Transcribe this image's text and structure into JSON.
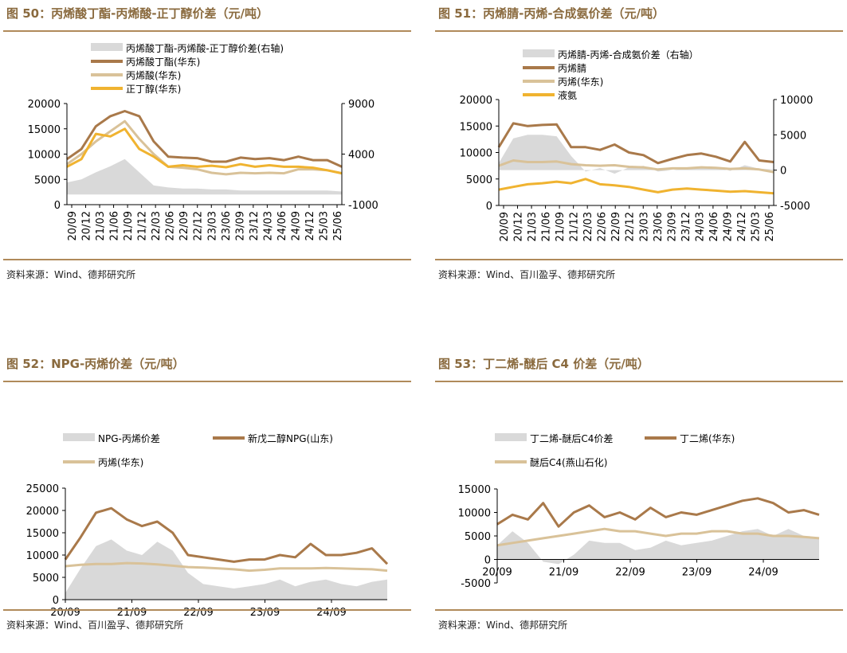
{
  "source_label_prefix": "资料来源：",
  "chart_data": [
    {
      "id": "c50",
      "type": "line",
      "title": "图 50：丙烯酸丁酯-丙烯酸-正丁醇价差（元/吨）",
      "source": "资料来源：Wind、德邦研究所",
      "x_tick_labels": [
        "20/09",
        "20/12",
        "21/03",
        "21/06",
        "21/09",
        "21/12",
        "22/03",
        "22/06",
        "22/09",
        "22/12",
        "23/03",
        "23/06",
        "23/09",
        "23/12",
        "24/03",
        "24/06",
        "24/09",
        "24/12",
        "25/03",
        "25/06"
      ],
      "y_left": {
        "min": 0,
        "max": 20000,
        "ticks": [
          "0",
          "5000",
          "10000",
          "15000",
          "20000"
        ]
      },
      "y_right": {
        "min": -1000,
        "max": 9000,
        "ticks": [
          "-1000",
          "4000",
          "9000"
        ]
      },
      "series": [
        {
          "name": "丙烯酸丁酯-丙烯酸-正丁醇价差(右轴)",
          "kind": "area",
          "axis": "right",
          "color": "#d9d9d9",
          "values": [
            1200,
            1500,
            2200,
            2800,
            3500,
            2200,
            900,
            700,
            600,
            600,
            500,
            500,
            400,
            400,
            400,
            400,
            400,
            400,
            400,
            300
          ]
        },
        {
          "name": "丙烯酸丁酯(华东)",
          "kind": "line",
          "axis": "left",
          "color": "#a9794a",
          "values": [
            9000,
            11000,
            15500,
            17500,
            18500,
            17500,
            12500,
            9500,
            9300,
            9200,
            8500,
            8500,
            9300,
            9000,
            9200,
            8800,
            9500,
            8800,
            8800,
            7500
          ]
        },
        {
          "name": "丙烯酸(华东)",
          "kind": "line",
          "axis": "left",
          "color": "#d9c299",
          "values": [
            8000,
            10000,
            12500,
            14500,
            16500,
            13000,
            10000,
            7500,
            7300,
            7000,
            6300,
            6000,
            6300,
            6200,
            6300,
            6200,
            7000,
            7000,
            6800,
            6200
          ]
        },
        {
          "name": "正丁醇(华东)",
          "kind": "line",
          "axis": "left",
          "color": "#f0b330",
          "values": [
            7500,
            9000,
            14000,
            13500,
            15000,
            11000,
            9500,
            7500,
            7800,
            7500,
            7700,
            7400,
            8000,
            7500,
            7800,
            7500,
            7500,
            7300,
            6800,
            6200
          ]
        }
      ]
    },
    {
      "id": "c51",
      "type": "line",
      "title": "图 51：丙烯腈-丙烯-合成氨价差（元/吨）",
      "source": "资料来源：Wind、百川盈孚、德邦研究所",
      "x_tick_labels": [
        "20/09",
        "20/12",
        "21/03",
        "21/06",
        "21/09",
        "21/12",
        "22/03",
        "22/06",
        "22/09",
        "22/12",
        "23/03",
        "23/06",
        "23/09",
        "23/12",
        "24/03",
        "24/06",
        "24/09",
        "24/12",
        "25/03",
        "25/06"
      ],
      "y_left": {
        "min": 0,
        "max": 20000,
        "ticks": [
          "0",
          "5000",
          "10000",
          "15000",
          "20000"
        ]
      },
      "y_right": {
        "min": -5000,
        "max": 10000,
        "ticks": [
          "-5000",
          "0",
          "5000",
          "10000"
        ]
      },
      "series": [
        {
          "name": "丙烯腈-丙烯-合成氨价差（右轴）",
          "kind": "area",
          "axis": "right",
          "color": "#d9d9d9",
          "values": [
            1000,
            4500,
            5000,
            5000,
            4800,
            2000,
            -200,
            300,
            -500,
            400,
            600,
            -200,
            0,
            300,
            300,
            400,
            -100,
            700,
            200,
            100
          ]
        },
        {
          "name": "丙烯腈",
          "kind": "line",
          "axis": "left",
          "color": "#a9794a",
          "values": [
            11000,
            15500,
            15000,
            15200,
            15300,
            11000,
            11000,
            10500,
            11500,
            10000,
            9500,
            8000,
            8800,
            9500,
            9800,
            9200,
            8300,
            12000,
            8500,
            8200
          ]
        },
        {
          "name": "丙烯(华东)",
          "kind": "line",
          "axis": "left",
          "color": "#d9c299",
          "values": [
            7500,
            8500,
            8200,
            8200,
            8300,
            7800,
            7600,
            7500,
            7600,
            7300,
            7200,
            6800,
            7000,
            7000,
            7200,
            7100,
            6900,
            7000,
            6800,
            6300
          ]
        },
        {
          "name": "液氨",
          "kind": "line",
          "axis": "left",
          "color": "#f0b330",
          "values": [
            3000,
            3500,
            4000,
            4200,
            4500,
            4200,
            5000,
            4000,
            3800,
            3500,
            3000,
            2500,
            3000,
            3200,
            3000,
            2800,
            2600,
            2700,
            2500,
            2300
          ]
        }
      ]
    },
    {
      "id": "c52",
      "type": "line",
      "title": "图 52：NPG-丙烯价差（元/吨）",
      "source": "资料来源：Wind、百川盈孚、德邦研究所",
      "x_tick_labels": [
        "20/09",
        "21/09",
        "22/09",
        "23/09",
        "24/09"
      ],
      "y_left": {
        "min": 0,
        "max": 25000,
        "ticks": [
          "0",
          "5000",
          "10000",
          "15000",
          "20000",
          "25000"
        ]
      },
      "series": [
        {
          "name": "NPG-丙烯价差",
          "kind": "area",
          "axis": "left",
          "color": "#d9d9d9",
          "values": [
            1500,
            7000,
            12000,
            13500,
            11000,
            10000,
            13000,
            11000,
            6000,
            3500,
            3000,
            2500,
            3000,
            3500,
            4500,
            3000,
            4000,
            4500,
            3500,
            3000,
            4000,
            4500
          ]
        },
        {
          "name": "新戊二醇NPG(山东)",
          "kind": "line",
          "axis": "left",
          "color": "#a9794a",
          "values": [
            9000,
            14000,
            19500,
            20500,
            18000,
            16500,
            17500,
            15000,
            10000,
            9500,
            9000,
            8500,
            9000,
            9000,
            10000,
            9500,
            12500,
            10000,
            10000,
            10500,
            11500,
            8000
          ]
        },
        {
          "name": "丙烯(华东)",
          "kind": "line",
          "axis": "left",
          "color": "#d9c299",
          "values": [
            7500,
            7800,
            8000,
            8000,
            8200,
            8100,
            7900,
            7600,
            7300,
            7200,
            7000,
            6800,
            6500,
            6700,
            7000,
            7000,
            7000,
            7100,
            7000,
            6900,
            6800,
            6500
          ]
        }
      ]
    },
    {
      "id": "c53",
      "type": "line",
      "title": "图 53：丁二烯-醚后 C4 价差（元/吨）",
      "source": "资料来源：Wind、德邦研究所",
      "x_tick_labels": [
        "20/09",
        "21/09",
        "22/09",
        "23/09",
        "24/09"
      ],
      "y_left": {
        "min": -5000,
        "max": 15000,
        "ticks": [
          "-5000",
          "0",
          "5000",
          "10000",
          "15000"
        ]
      },
      "series": [
        {
          "name": "丁二烯-醚后C4价差",
          "kind": "area",
          "axis": "left",
          "color": "#d9d9d9",
          "values": [
            3000,
            6000,
            3500,
            -500,
            -1000,
            1000,
            4000,
            3500,
            3500,
            2000,
            2500,
            4000,
            3000,
            3500,
            4000,
            5000,
            6000,
            6500,
            5000,
            6500,
            5000,
            4500
          ]
        },
        {
          "name": "丁二烯(华东)",
          "kind": "line",
          "axis": "left",
          "color": "#a9794a",
          "values": [
            7500,
            9500,
            8500,
            12000,
            7000,
            10000,
            11500,
            9000,
            10000,
            8500,
            11000,
            9000,
            10000,
            9500,
            10500,
            11500,
            12500,
            13000,
            12000,
            10000,
            10500,
            9500
          ]
        },
        {
          "name": "醚后C4(燕山石化)",
          "kind": "line",
          "axis": "left",
          "color": "#d9c299",
          "values": [
            3000,
            3500,
            4000,
            4500,
            5000,
            5500,
            6000,
            6500,
            6000,
            6000,
            5500,
            5000,
            5500,
            5500,
            6000,
            6000,
            5500,
            5500,
            5000,
            5000,
            4800,
            4500
          ]
        }
      ]
    }
  ]
}
